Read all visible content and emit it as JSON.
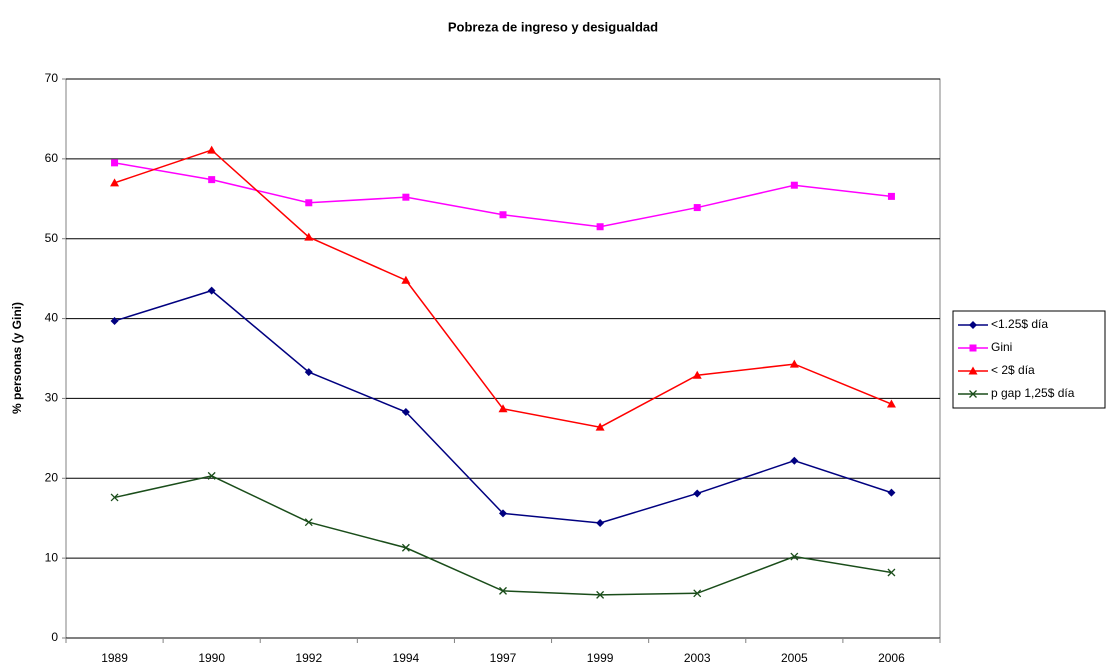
{
  "chart_data": {
    "type": "line",
    "title": "Pobreza de ingreso y desigualdad",
    "y_label": "% personas (y Gini)",
    "categories": [
      "1989",
      "1990",
      "1992",
      "1994",
      "1997",
      "1999",
      "2003",
      "2005",
      "2006"
    ],
    "series": [
      {
        "name": "<1.25$ día",
        "color": "#000080",
        "marker": "diamond",
        "values": [
          39.7,
          43.5,
          33.3,
          28.3,
          15.6,
          14.4,
          18.1,
          22.2,
          18.2
        ]
      },
      {
        "name": "Gini",
        "color": "#ff00ff",
        "marker": "square",
        "values": [
          59.5,
          57.4,
          54.5,
          55.2,
          53.0,
          51.5,
          53.9,
          56.7,
          55.3
        ]
      },
      {
        "name": "< 2$ día",
        "color": "#ff0000",
        "marker": "triangle",
        "values": [
          57.0,
          61.1,
          50.2,
          44.8,
          28.7,
          26.4,
          32.9,
          34.3,
          29.3
        ]
      },
      {
        "name": "p gap 1,25$ día",
        "color": "#1a4d1a",
        "marker": "x",
        "values": [
          17.6,
          20.3,
          14.5,
          11.3,
          5.9,
          5.4,
          5.6,
          10.2,
          8.2
        ]
      }
    ],
    "ylim": [
      0,
      70
    ],
    "yticks": [
      0,
      10,
      20,
      30,
      40,
      50,
      60,
      70
    ],
    "grid": true,
    "legend": "right"
  }
}
